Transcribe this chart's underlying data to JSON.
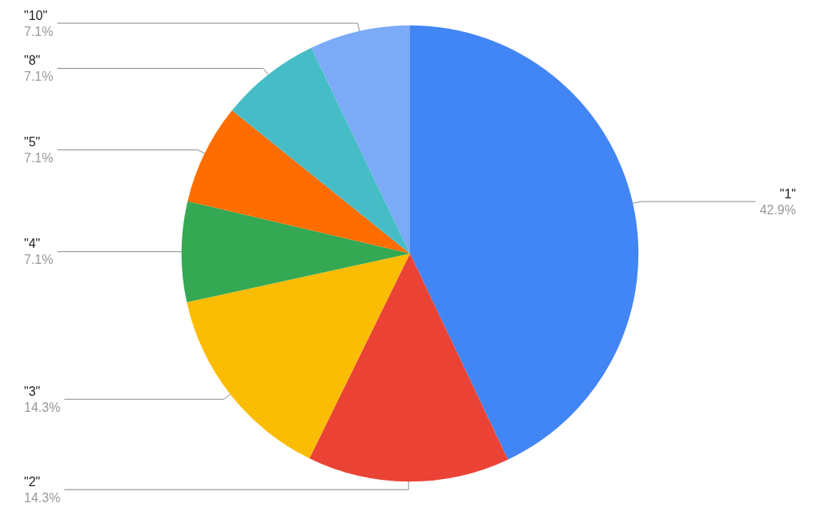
{
  "chart_data": {
    "type": "pie",
    "categories": [
      "\"1\"",
      "\"2\"",
      "\"3\"",
      "\"4\"",
      "\"5\"",
      "\"8\"",
      "\"10\""
    ],
    "values": [
      42.9,
      14.3,
      14.3,
      7.1,
      7.1,
      7.1,
      7.1
    ],
    "value_labels": [
      "42.9%",
      "14.3%",
      "14.3%",
      "7.1%",
      "7.1%",
      "7.1%",
      "7.1%"
    ],
    "colors": [
      "#4285f4",
      "#ea4335",
      "#fbbc04",
      "#34a853",
      "#ff6d01",
      "#46bdc6",
      "#7baaf7"
    ],
    "legend": false
  }
}
